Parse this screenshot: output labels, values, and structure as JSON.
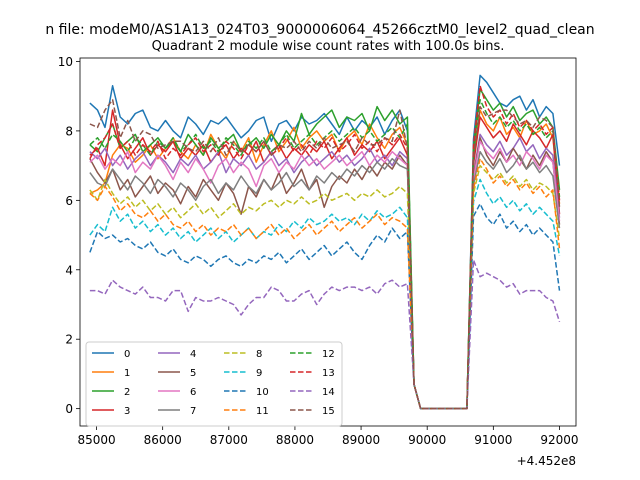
{
  "chart_data": {
    "type": "line",
    "suptitle": "n file: modeM0/AS1A13_024T03_9000006064_45266cztM0_level2_quad_clean",
    "title": "Quadrant 2 module wise count rates with 100.0s bins.",
    "xlabel": "",
    "ylabel": "",
    "x_offset_label": "+4.452e8",
    "xlim": [
      84750,
      92250
    ],
    "ylim": [
      -0.5,
      10.1
    ],
    "x_ticks": [
      85000,
      86000,
      87000,
      88000,
      89000,
      90000,
      91000,
      92000
    ],
    "x_tick_labels": [
      "85000",
      "86000",
      "87000",
      "88000",
      "89000",
      "90000",
      "91000",
      "92000"
    ],
    "y_ticks": [
      0,
      2,
      4,
      6,
      8,
      10
    ],
    "y_tick_labels": [
      "0",
      "2",
      "4",
      "6",
      "8",
      "10"
    ],
    "legend_position": "lower-left",
    "legend_columns": 4,
    "gap": {
      "start": 89650,
      "end": 90650,
      "drop_end": 89850,
      "rise_start": 90650
    },
    "series": [
      {
        "name": "0",
        "color": "#1f77b4",
        "style": "solid",
        "levels": [
          8.8,
          8.6,
          8.1,
          9.3,
          8.4,
          8.2,
          8.5,
          8.6,
          8.1,
          8.0,
          8.3,
          8.0,
          7.8,
          8.4,
          8.2,
          7.9,
          8.3,
          8.2,
          8.4,
          8.1,
          7.8,
          8.0,
          8.3,
          8.4,
          7.7,
          8.2,
          8.3,
          8.0,
          8.4,
          8.2,
          8.3,
          8.5,
          8.2,
          7.9,
          8.4,
          8.0,
          8.3,
          8.1,
          8.4,
          7.9,
          8.3,
          8.6,
          8.0
        ],
        "post": [
          9.6,
          9.4,
          9.1,
          8.8,
          8.7,
          8.9,
          9.0,
          8.6,
          8.9,
          8.4,
          8.7,
          8.5,
          7.0
        ]
      },
      {
        "name": "1",
        "color": "#ff7f0e",
        "style": "solid",
        "levels": [
          6.2,
          6.3,
          6.5,
          7.3,
          7.6,
          7.5,
          7.1,
          7.3,
          7.6,
          7.2,
          7.5,
          7.8,
          7.4,
          7.2,
          7.6,
          7.3,
          7.9,
          7.5,
          7.2,
          7.7,
          7.4,
          7.8,
          7.1,
          7.6,
          8.0,
          7.4,
          7.7,
          8.1,
          7.5,
          7.8,
          8.0,
          7.7,
          7.9,
          7.4,
          7.8,
          8.0,
          7.6,
          8.2,
          7.8,
          7.5,
          7.9,
          8.1,
          7.6
        ],
        "post": [
          8.6,
          8.2,
          8.0,
          8.4,
          7.9,
          8.1,
          7.8,
          8.3,
          7.9,
          8.0,
          8.2,
          7.8,
          5.9
        ]
      },
      {
        "name": "2",
        "color": "#2ca02c",
        "style": "solid",
        "levels": [
          7.6,
          7.4,
          7.8,
          8.2,
          7.5,
          7.7,
          7.9,
          7.4,
          7.6,
          7.8,
          7.5,
          7.7,
          7.4,
          7.9,
          7.6,
          7.3,
          7.8,
          7.5,
          7.7,
          7.9,
          7.4,
          7.6,
          7.8,
          7.5,
          7.9,
          7.6,
          8.0,
          7.7,
          8.5,
          7.9,
          8.2,
          8.4,
          8.6,
          8.1,
          8.4,
          8.3,
          8.5,
          8.0,
          8.7,
          8.3,
          8.6,
          8.2,
          8.4
        ],
        "post": [
          9.2,
          8.9,
          8.6,
          8.8,
          8.4,
          8.7,
          8.3,
          8.5,
          8.6,
          8.2,
          8.4,
          8.1,
          6.3
        ]
      },
      {
        "name": "3",
        "color": "#d62728",
        "style": "solid",
        "levels": [
          7.3,
          7.5,
          7.0,
          8.6,
          7.6,
          7.2,
          7.5,
          7.8,
          7.3,
          7.6,
          7.4,
          7.7,
          7.2,
          7.5,
          7.3,
          7.6,
          7.1,
          7.4,
          7.6,
          7.2,
          7.5,
          7.3,
          7.7,
          7.1,
          7.4,
          7.6,
          7.2,
          7.5,
          7.3,
          7.6,
          7.4,
          7.7,
          7.2,
          7.5,
          7.8,
          7.3,
          7.6,
          7.4,
          7.7,
          7.2,
          7.5,
          7.8,
          7.3
        ],
        "post": [
          8.4,
          8.1,
          7.8,
          8.0,
          7.7,
          8.2,
          7.9,
          7.6,
          8.0,
          7.8,
          7.5,
          7.9,
          5.6
        ]
      },
      {
        "name": "4",
        "color": "#9467bd",
        "style": "solid",
        "levels": [
          7.4,
          7.2,
          7.5,
          7.0,
          7.3,
          6.9,
          7.2,
          7.4,
          7.0,
          7.3,
          7.1,
          6.8,
          7.2,
          7.0,
          7.3,
          6.9,
          7.1,
          7.4,
          6.8,
          7.2,
          7.0,
          7.3,
          6.9,
          7.1,
          7.4,
          7.0,
          7.2,
          6.8,
          7.1,
          7.3,
          7.0,
          7.2,
          7.4,
          7.1,
          7.3,
          7.0,
          7.2,
          7.5,
          7.1,
          7.3,
          7.0,
          7.4,
          7.2
        ],
        "post": [
          7.9,
          7.6,
          7.4,
          7.7,
          7.3,
          7.5,
          7.8,
          7.4,
          7.6,
          7.2,
          7.5,
          7.3,
          5.5
        ]
      },
      {
        "name": "5",
        "color": "#8c564b",
        "style": "solid",
        "levels": [
          7.2,
          6.8,
          6.5,
          6.9,
          6.3,
          6.6,
          6.1,
          6.4,
          6.7,
          6.2,
          6.5,
          6.3,
          5.9,
          6.4,
          6.1,
          6.6,
          6.3,
          6.0,
          6.5,
          6.2,
          5.6,
          6.4,
          6.1,
          6.6,
          6.3,
          6.8,
          6.2,
          6.5,
          6.9,
          6.3,
          6.6,
          5.8,
          6.4,
          6.7,
          6.5,
          6.9,
          6.6,
          7.0,
          6.7,
          7.1,
          6.9,
          7.3,
          7.0
        ],
        "post": [
          7.8,
          7.3,
          7.0,
          7.4,
          7.1,
          7.5,
          7.2,
          6.9,
          7.3,
          7.0,
          7.4,
          7.1,
          5.3
        ]
      },
      {
        "name": "6",
        "color": "#e377c2",
        "style": "solid",
        "levels": [
          7.1,
          7.3,
          6.9,
          7.2,
          7.0,
          7.4,
          6.8,
          7.1,
          6.9,
          7.3,
          7.0,
          6.6,
          7.1,
          6.8,
          7.2,
          6.9,
          6.5,
          7.0,
          7.2,
          6.8,
          7.1,
          6.9,
          6.4,
          7.0,
          7.2,
          6.8,
          7.1,
          6.9,
          7.3,
          7.0,
          7.2,
          6.9,
          7.1,
          7.3,
          7.0,
          7.2,
          7.4,
          7.0,
          7.3,
          7.1,
          7.4,
          7.2,
          7.0
        ],
        "post": [
          7.7,
          7.4,
          7.2,
          7.5,
          7.1,
          7.3,
          7.0,
          7.4,
          7.2,
          6.9,
          7.3,
          7.1,
          5.4
        ]
      },
      {
        "name": "7",
        "color": "#7f7f7f",
        "style": "solid",
        "levels": [
          6.8,
          6.5,
          6.4,
          6.9,
          6.6,
          6.3,
          6.7,
          6.5,
          6.2,
          6.6,
          6.4,
          6.1,
          6.5,
          6.3,
          6.0,
          6.4,
          6.6,
          6.2,
          6.5,
          6.3,
          6.7,
          6.4,
          6.2,
          6.6,
          6.3,
          6.5,
          6.8,
          6.4,
          6.6,
          6.3,
          6.7,
          6.5,
          6.8,
          6.6,
          6.9,
          6.7,
          7.0,
          6.8,
          7.1,
          6.9,
          7.2,
          7.0,
          6.9
        ],
        "post": [
          7.4,
          7.1,
          6.9,
          7.2,
          6.8,
          7.0,
          7.3,
          6.9,
          7.1,
          6.8,
          7.0,
          6.7,
          5.2
        ]
      },
      {
        "name": "8",
        "color": "#bcbd22",
        "style": "dashed",
        "levels": [
          6.3,
          6.0,
          6.6,
          6.2,
          5.9,
          6.1,
          5.8,
          6.0,
          5.7,
          5.9,
          5.6,
          5.8,
          5.5,
          5.7,
          5.9,
          5.6,
          5.8,
          5.5,
          5.7,
          5.9,
          5.6,
          5.8,
          5.7,
          5.9,
          6.0,
          5.8,
          6.0,
          5.9,
          6.1,
          5.9,
          6.0,
          6.2,
          6.0,
          6.1,
          6.2,
          6.0,
          6.2,
          6.1,
          6.3,
          6.1,
          6.2,
          6.4,
          6.2
        ],
        "post": [
          7.0,
          6.8,
          6.6,
          6.8,
          6.5,
          6.7,
          6.4,
          6.6,
          6.3,
          6.5,
          6.4,
          6.2,
          4.9
        ]
      },
      {
        "name": "9",
        "color": "#17becf",
        "style": "dashed",
        "levels": [
          5.0,
          5.3,
          5.1,
          5.8,
          5.4,
          5.6,
          5.2,
          5.4,
          5.1,
          5.3,
          5.0,
          5.2,
          4.9,
          5.1,
          4.8,
          5.0,
          5.2,
          4.9,
          5.1,
          4.8,
          5.0,
          5.2,
          4.9,
          5.1,
          5.0,
          5.3,
          5.1,
          5.4,
          5.2,
          5.5,
          5.3,
          5.4,
          5.6,
          5.4,
          5.5,
          5.3,
          5.6,
          5.4,
          5.7,
          5.5,
          5.6,
          5.8,
          5.5
        ],
        "post": [
          6.6,
          6.2,
          5.9,
          6.1,
          5.8,
          6.0,
          5.7,
          5.9,
          5.6,
          5.8,
          5.6,
          5.4,
          4.4
        ]
      },
      {
        "name": "10",
        "color": "#1f77b4",
        "style": "dashed",
        "levels": [
          4.5,
          5.1,
          4.9,
          5.0,
          4.8,
          4.9,
          4.7,
          4.6,
          4.8,
          4.5,
          4.4,
          4.6,
          4.3,
          4.2,
          4.4,
          4.3,
          4.1,
          4.3,
          4.4,
          4.2,
          4.1,
          4.3,
          4.2,
          4.4,
          4.3,
          4.5,
          4.2,
          4.4,
          4.6,
          4.3,
          4.5,
          4.7,
          4.4,
          4.6,
          4.8,
          4.5,
          4.3,
          4.7,
          5.0,
          4.8,
          5.2,
          4.9,
          5.1
        ],
        "post": [
          5.9,
          5.5,
          5.3,
          5.6,
          5.2,
          5.4,
          5.1,
          5.3,
          5.0,
          5.2,
          5.0,
          4.8,
          3.4
        ]
      },
      {
        "name": "11",
        "color": "#ff7f0e",
        "style": "dashed",
        "levels": [
          6.2,
          6.0,
          6.4,
          6.1,
          5.7,
          5.9,
          5.6,
          5.5,
          5.7,
          5.4,
          5.6,
          5.3,
          5.2,
          5.4,
          5.1,
          5.3,
          5.0,
          5.2,
          5.1,
          5.3,
          5.0,
          5.2,
          4.9,
          5.1,
          5.3,
          5.0,
          5.2,
          4.9,
          5.1,
          5.3,
          5.0,
          5.2,
          5.4,
          5.1,
          5.3,
          5.5,
          5.2,
          5.4,
          5.6,
          5.3,
          5.5,
          5.4,
          5.2
        ],
        "post": [
          7.2,
          6.9,
          6.5,
          6.7,
          6.4,
          6.6,
          6.3,
          6.5,
          6.2,
          6.4,
          6.1,
          6.3,
          4.6
        ]
      },
      {
        "name": "12",
        "color": "#2ca02c",
        "style": "dashed",
        "levels": [
          7.6,
          7.8,
          7.5,
          7.9,
          7.7,
          7.4,
          7.8,
          7.6,
          7.3,
          7.7,
          7.5,
          7.8,
          7.4,
          7.6,
          7.9,
          7.5,
          7.7,
          7.4,
          7.8,
          7.6,
          7.3,
          7.7,
          7.5,
          7.8,
          7.4,
          7.6,
          7.9,
          7.5,
          7.7,
          7.9,
          7.6,
          7.8,
          8.0,
          7.7,
          7.9,
          8.1,
          7.8,
          8.0,
          7.7,
          7.9,
          8.1,
          7.8,
          8.2
        ],
        "post": [
          8.9,
          8.5,
          8.2,
          8.4,
          8.1,
          8.3,
          8.0,
          8.2,
          7.9,
          8.1,
          7.8,
          8.0,
          6.1
        ]
      },
      {
        "name": "13",
        "color": "#d62728",
        "style": "dashed",
        "levels": [
          7.2,
          7.6,
          7.8,
          8.2,
          7.5,
          7.7,
          7.3,
          7.6,
          7.4,
          7.7,
          7.2,
          7.5,
          7.3,
          7.6,
          7.8,
          7.4,
          7.6,
          7.3,
          7.7,
          7.5,
          7.2,
          7.6,
          7.4,
          7.7,
          7.3,
          7.5,
          7.8,
          7.4,
          7.6,
          7.3,
          7.7,
          7.5,
          7.8,
          7.4,
          7.6,
          7.9,
          7.5,
          7.7,
          7.4,
          7.8,
          7.6,
          7.9,
          7.5
        ],
        "post": [
          9.3,
          8.7,
          8.4,
          8.6,
          8.2,
          8.5,
          8.1,
          8.3,
          8.0,
          8.2,
          7.9,
          8.1,
          6.0
        ]
      },
      {
        "name": "14",
        "color": "#9467bd",
        "style": "dashed",
        "levels": [
          3.4,
          3.4,
          3.3,
          3.7,
          3.5,
          3.4,
          3.3,
          3.5,
          3.2,
          3.2,
          3.1,
          3.4,
          3.4,
          2.8,
          3.2,
          3.1,
          3.1,
          3.2,
          3.1,
          3.0,
          2.7,
          3.0,
          3.2,
          3.2,
          3.5,
          3.4,
          3.1,
          3.1,
          3.3,
          3.4,
          3.0,
          3.3,
          3.5,
          3.4,
          3.5,
          3.5,
          3.4,
          3.5,
          3.3,
          3.6,
          3.7,
          3.5,
          3.6
        ],
        "post": [
          3.8,
          3.9,
          3.8,
          3.7,
          3.5,
          3.6,
          3.3,
          3.4,
          3.4,
          3.4,
          3.2,
          3.1,
          2.5
        ]
      },
      {
        "name": "15",
        "color": "#8c564b",
        "style": "dashed",
        "levels": [
          8.2,
          8.1,
          8.6,
          8.9,
          7.8,
          8.3,
          7.7,
          8.0,
          7.9,
          7.5,
          7.6,
          7.7,
          7.7,
          7.5,
          7.4,
          7.7,
          7.4,
          7.8,
          7.3,
          7.7,
          7.4,
          7.6,
          7.4,
          7.7,
          7.3,
          7.6,
          7.5,
          7.7,
          7.4,
          7.7,
          7.5,
          7.8,
          7.5,
          7.6,
          7.7,
          7.4,
          7.8,
          7.6,
          7.6,
          7.8,
          7.7,
          8.6,
          7.5
        ],
        "post": [
          8.7,
          8.4,
          8.5,
          8.6,
          8.6,
          8.4,
          8.2,
          8.3,
          8.1,
          8.4,
          8.3,
          8.1,
          5.8
        ]
      }
    ]
  }
}
